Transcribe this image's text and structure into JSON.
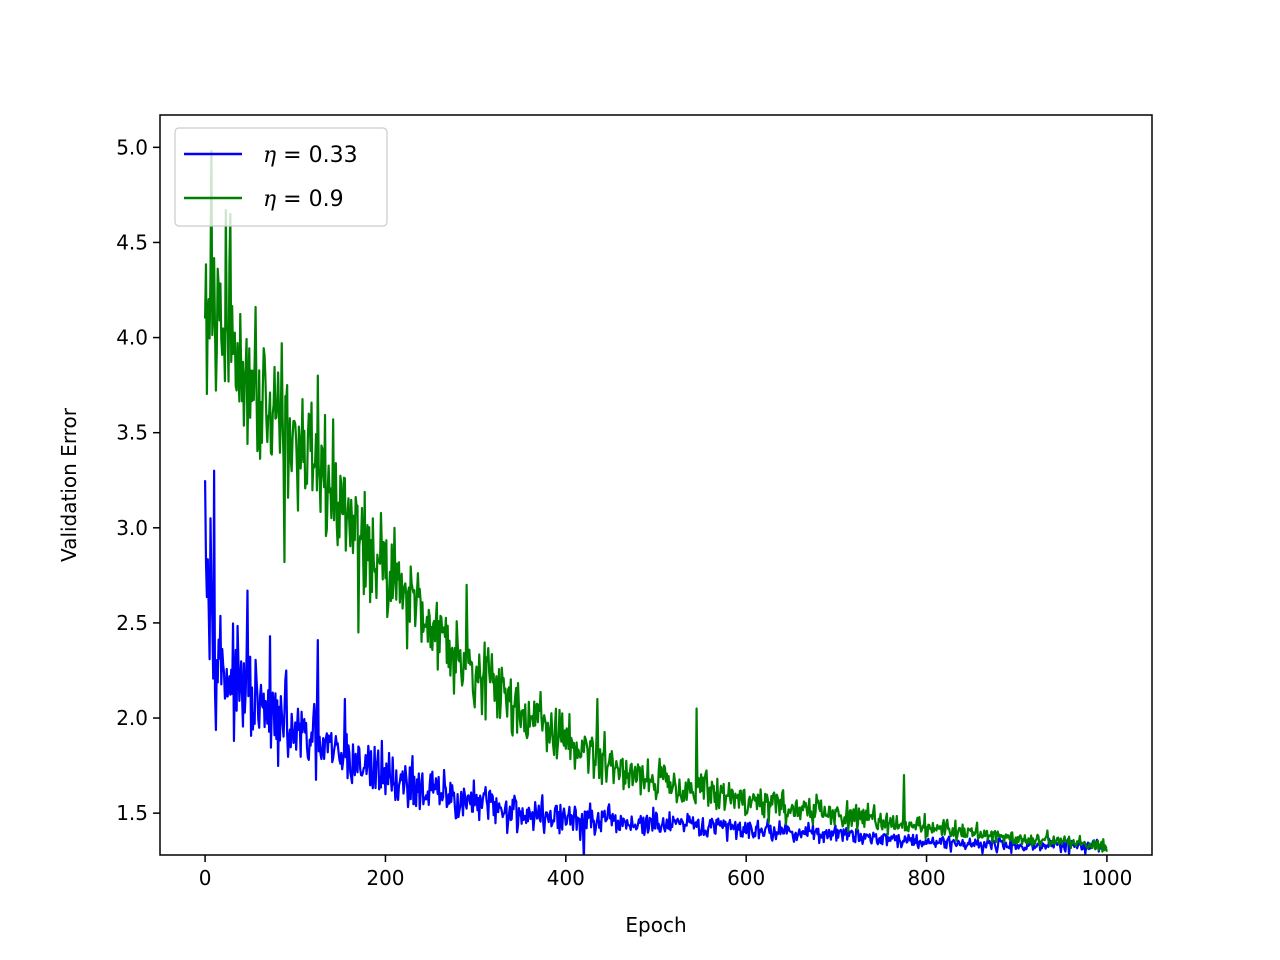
{
  "chart_data": {
    "type": "line",
    "title": "",
    "xlabel": "Epoch",
    "ylabel": "Validation Error",
    "xlim": [
      -50,
      1050
    ],
    "ylim": [
      1.28,
      5.17
    ],
    "xticks": [
      0,
      200,
      400,
      600,
      800,
      1000
    ],
    "xtick_labels": [
      "0",
      "200",
      "400",
      "600",
      "800",
      "1000"
    ],
    "yticks": [
      1.5,
      2.0,
      2.5,
      3.0,
      3.5,
      4.0,
      4.5,
      5.0
    ],
    "ytick_labels": [
      "1.5",
      "2.0",
      "2.5",
      "3.0",
      "3.5",
      "4.0",
      "4.5",
      "5.0"
    ],
    "grid": false,
    "legend": {
      "position": "top-left",
      "entries": [
        {
          "symbol": "η",
          "rest": " = 0.33",
          "color": "#0000ff"
        },
        {
          "symbol": "η",
          "rest": " = 0.9",
          "color": "#008000"
        }
      ]
    },
    "series": [
      {
        "name": "η = 0.33",
        "color": "#0000ff",
        "x": [
          0,
          5,
          10,
          15,
          20,
          30,
          40,
          50,
          60,
          70,
          80,
          100,
          120,
          140,
          160,
          180,
          200,
          230,
          260,
          300,
          350,
          400,
          450,
          500,
          550,
          600,
          650,
          700,
          750,
          800,
          850,
          900,
          950,
          1000
        ],
        "y": [
          3.25,
          2.55,
          2.45,
          2.35,
          2.25,
          2.2,
          2.15,
          2.1,
          2.05,
          2.0,
          1.97,
          1.92,
          1.87,
          1.82,
          1.78,
          1.74,
          1.7,
          1.64,
          1.6,
          1.55,
          1.5,
          1.47,
          1.45,
          1.44,
          1.43,
          1.42,
          1.4,
          1.39,
          1.37,
          1.35,
          1.34,
          1.33,
          1.33,
          1.32
        ],
        "noise": [
          0.35,
          0.35,
          0.4,
          0.3,
          0.3,
          0.28,
          0.25,
          0.25,
          0.25,
          0.22,
          0.2,
          0.2,
          0.2,
          0.18,
          0.16,
          0.15,
          0.15,
          0.14,
          0.13,
          0.12,
          0.11,
          0.1,
          0.09,
          0.08,
          0.07,
          0.06,
          0.05,
          0.05,
          0.04,
          0.04,
          0.04,
          0.04,
          0.04,
          0.04
        ],
        "spikes": [
          [
            10,
            3.3
          ],
          [
            6,
            3.05
          ],
          [
            47,
            2.67
          ],
          [
            72,
            2.43
          ],
          [
            125,
            2.41
          ],
          [
            90,
            2.25
          ],
          [
            155,
            2.1
          ],
          [
            196,
            1.88
          ],
          [
            230,
            1.8
          ],
          [
            420,
            1.25
          ]
        ]
      },
      {
        "name": "η = 0.9",
        "color": "#008000",
        "x": [
          0,
          10,
          20,
          30,
          40,
          60,
          80,
          100,
          120,
          150,
          180,
          200,
          230,
          260,
          300,
          350,
          400,
          450,
          500,
          550,
          600,
          650,
          700,
          750,
          800,
          850,
          900,
          950,
          1000
        ],
        "y": [
          4.1,
          4.05,
          4.0,
          3.95,
          3.85,
          3.75,
          3.62,
          3.45,
          3.3,
          3.1,
          2.9,
          2.8,
          2.62,
          2.45,
          2.25,
          2.05,
          1.88,
          1.75,
          1.68,
          1.62,
          1.57,
          1.53,
          1.49,
          1.46,
          1.43,
          1.4,
          1.37,
          1.35,
          1.33
        ],
        "noise": [
          0.45,
          0.45,
          0.45,
          0.45,
          0.4,
          0.4,
          0.38,
          0.35,
          0.32,
          0.3,
          0.28,
          0.26,
          0.24,
          0.22,
          0.2,
          0.18,
          0.16,
          0.14,
          0.12,
          0.11,
          0.1,
          0.09,
          0.08,
          0.07,
          0.06,
          0.05,
          0.05,
          0.04,
          0.04
        ],
        "spikes": [
          [
            7,
            4.98
          ],
          [
            23,
            4.67
          ],
          [
            28,
            4.65
          ],
          [
            85,
            3.97
          ],
          [
            125,
            3.8
          ],
          [
            142,
            3.57
          ],
          [
            155,
            3.26
          ],
          [
            210,
            3.0
          ],
          [
            290,
            2.7
          ],
          [
            435,
            2.1
          ],
          [
            545,
            2.05
          ],
          [
            775,
            1.7
          ],
          [
            88,
            2.82
          ],
          [
            170,
            2.45
          ]
        ]
      }
    ]
  }
}
